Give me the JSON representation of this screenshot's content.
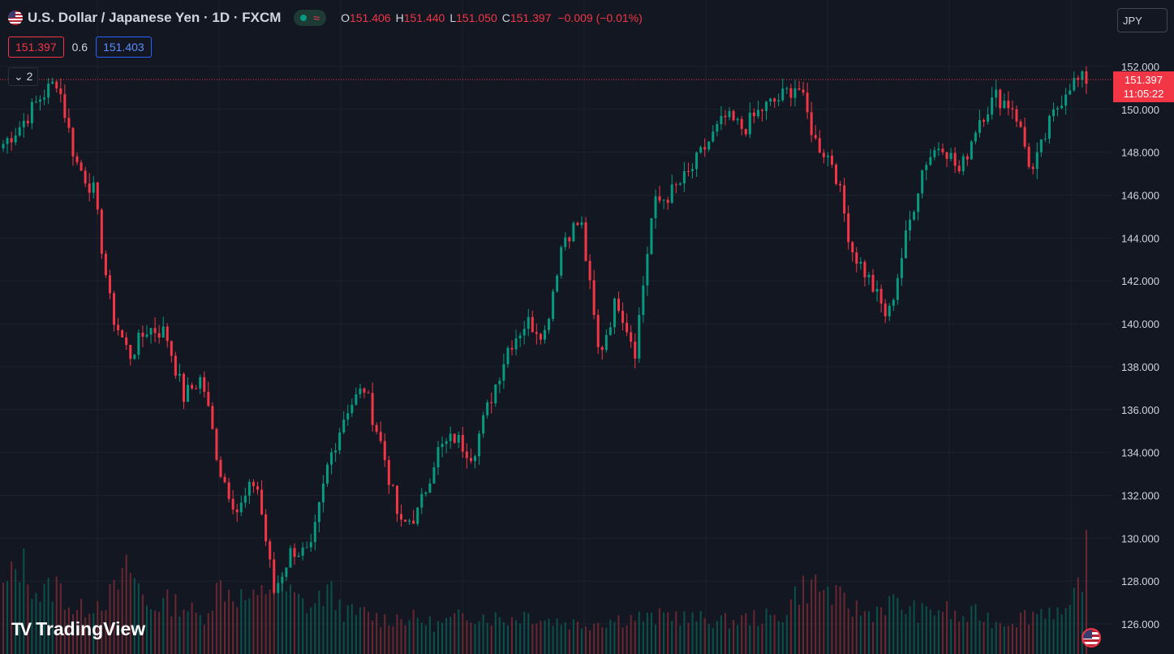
{
  "legend": {
    "symbol_title": "U.S. Dollar / Japanese Yen · 1D · FXCM",
    "open_key": "O",
    "open": "151.406",
    "high_key": "H",
    "high": "151.440",
    "low_key": "L",
    "low": "151.050",
    "close_key": "C",
    "close": "151.397",
    "change": "−0.009 (−0.01%)",
    "flag_icon": "us-flag-icon",
    "wave_icon": "wave-icon"
  },
  "trade": {
    "sell": "151.397",
    "spread": "0.6",
    "buy": "151.403"
  },
  "indicators": {
    "collapsed_label": "2",
    "chevron_icon": "chevron-down-icon"
  },
  "currency": "JPY",
  "last_price": {
    "price": "151.397",
    "countdown": "11:05:22"
  },
  "brand": {
    "logo_text": "TradingView"
  },
  "colors": {
    "up": "#089981",
    "down": "#f23645",
    "background": "#131722",
    "grid": "#1e222d",
    "axis_text": "#d1d4dc"
  },
  "chart_data": {
    "type": "candlestick",
    "y_axis_position": "right",
    "ylim": [
      125,
      153
    ],
    "y_ticks": [
      "126.000",
      "128.000",
      "130.000",
      "132.000",
      "134.000",
      "136.000",
      "138.000",
      "140.000",
      "142.000",
      "144.000",
      "146.000",
      "148.000",
      "150.000",
      "152.000"
    ],
    "price_keypoints": [
      148.4,
      149.3,
      150.5,
      151.4,
      147.6,
      146.2,
      140.5,
      138.5,
      139.8,
      139.6,
      136.6,
      137.5,
      133.2,
      131.2,
      132.8,
      127.5,
      129.5,
      129.2,
      133.5,
      136.0,
      137.0,
      134.2,
      130.5,
      131.2,
      134.0,
      134.7,
      133.9,
      136.5,
      139.0,
      140.1,
      139.6,
      144.0,
      144.8,
      138.5,
      141.2,
      138.8,
      145.5,
      146.1,
      147.0,
      148.4,
      149.6,
      149.1,
      150.0,
      150.5,
      151.2,
      148.5,
      147.5,
      143.5,
      142.0,
      140.2,
      144.0,
      147.5,
      148.5,
      147.0,
      149.5,
      150.6,
      150.1,
      147.0,
      149.4,
      151.2,
      151.4
    ],
    "volume_profile": [
      0.55,
      0.8,
      0.5,
      0.6,
      0.35,
      0.45,
      0.5,
      0.75,
      0.4,
      0.45,
      0.42,
      0.3,
      0.6,
      0.5,
      0.45,
      0.65,
      0.5,
      0.4,
      0.55,
      0.35,
      0.35,
      0.3,
      0.32,
      0.3,
      0.25,
      0.3,
      0.35,
      0.32,
      0.3,
      0.35,
      0.3,
      0.28,
      0.26,
      0.28,
      0.3,
      0.32,
      0.3,
      0.35,
      0.3,
      0.3,
      0.28,
      0.3,
      0.32,
      0.3,
      0.55,
      0.6,
      0.5,
      0.4,
      0.35,
      0.45,
      0.4,
      0.35,
      0.4,
      0.3,
      0.35,
      0.28,
      0.3,
      0.35,
      0.4,
      0.3,
      0.85
    ]
  }
}
